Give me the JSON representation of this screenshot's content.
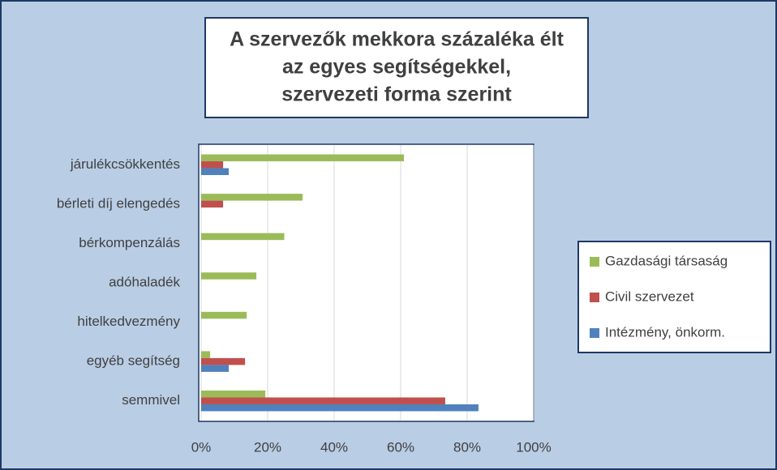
{
  "chart_data": {
    "type": "hbar",
    "title": [
      "A szervezők mekkora százaléka élt",
      "az egyes segítségekkel,",
      "szervezeti forma szerint"
    ],
    "categories": [
      "járulékcsökkentés",
      "bérleti díj elengedés",
      "bérkompenzálás",
      "adóhaladék",
      "hitelkedvezmény",
      "egyéb segítség",
      "semmivel"
    ],
    "series": [
      {
        "name": "Gazdasági társaság",
        "color": "#9bbb59",
        "values": [
          61,
          30.5,
          25,
          16.6,
          13.7,
          2.7,
          19.3
        ]
      },
      {
        "name": "Civil szervezet",
        "color": "#c0504d",
        "values": [
          6.6,
          6.6,
          0,
          0,
          0,
          13.2,
          73.4
        ]
      },
      {
        "name": "Intézmény, önkorm.",
        "color": "#4f81bd",
        "values": [
          8.3,
          0,
          0,
          0,
          0,
          8.3,
          83.4
        ]
      }
    ],
    "xlim": [
      0,
      100
    ],
    "xticks": [
      {
        "value": 0,
        "label": "0%"
      },
      {
        "value": 20,
        "label": "20%"
      },
      {
        "value": 40,
        "label": "40%"
      },
      {
        "value": 60,
        "label": "60%"
      },
      {
        "value": 80,
        "label": "80%"
      },
      {
        "value": 100,
        "label": "100%"
      }
    ],
    "grid": true,
    "legend": "right"
  }
}
